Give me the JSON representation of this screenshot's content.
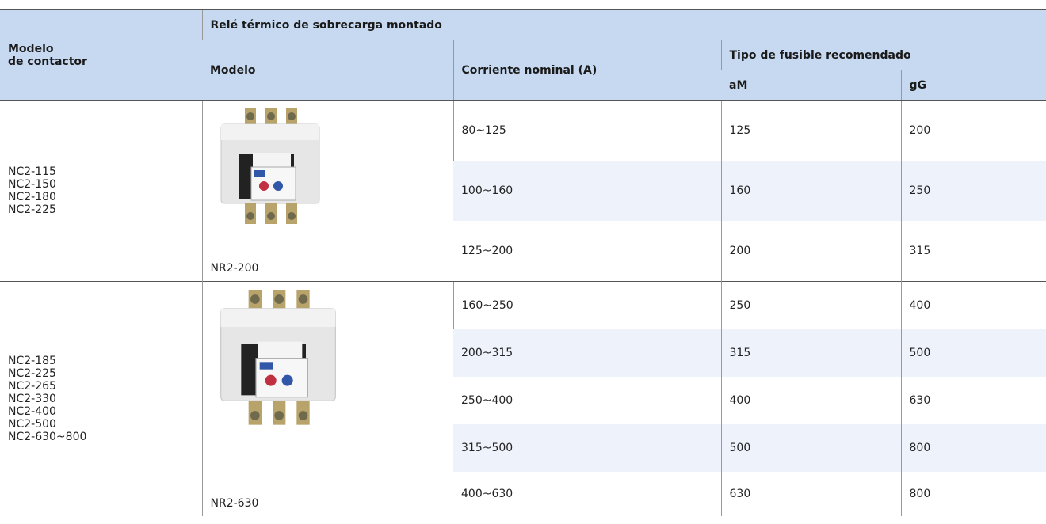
{
  "table": {
    "header": {
      "contactor_model": [
        "Modelo",
        "de contactor"
      ],
      "relay": "Relé térmico de sobrecarga montado",
      "model": "Modelo",
      "current": "Corriente nominal (A)",
      "fuse": "Tipo de fusible recomendado",
      "am": "aM",
      "gg": "gG"
    },
    "groups": [
      {
        "contactors": [
          "NC2-115",
          "NC2-150",
          "NC2-180",
          "NC2-225"
        ],
        "relay_model": "NR2-200",
        "rows": [
          {
            "current": "80~125",
            "am": 125,
            "gg": 200
          },
          {
            "current": "100~160",
            "am": 160,
            "gg": 250
          },
          {
            "current": "125~200",
            "am": 200,
            "gg": 315
          }
        ]
      },
      {
        "contactors": [
          "NC2-185",
          "NC2-225",
          "NC2-265",
          "NC2-330",
          "NC2-400",
          "NC2-500",
          "NC2-630~800"
        ],
        "relay_model": "NR2-630",
        "rows": [
          {
            "current": "160~250",
            "am": 250,
            "gg": 400
          },
          {
            "current": "200~315",
            "am": 315,
            "gg": 500
          },
          {
            "current": "250~400",
            "am": 400,
            "gg": 630
          },
          {
            "current": "315~500",
            "am": 500,
            "gg": 800
          },
          {
            "current": "400~630",
            "am": 630,
            "gg": 800
          }
        ]
      }
    ]
  }
}
